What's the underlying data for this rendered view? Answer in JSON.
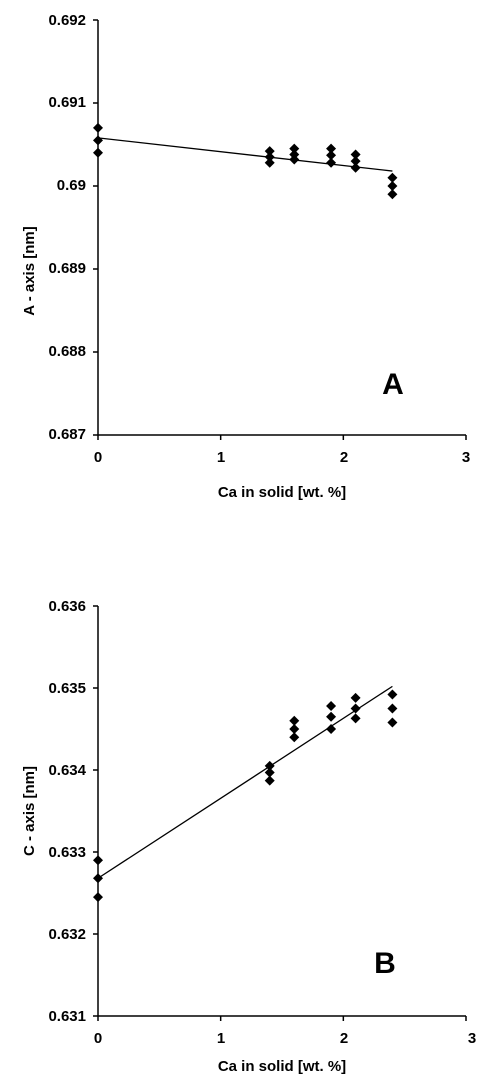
{
  "chart_data": [
    {
      "type": "scatter",
      "panel_label": "A",
      "xlabel": "Ca in solid [wt. %]",
      "ylabel": "A - axis [nm]",
      "xlim": [
        0,
        3
      ],
      "ylim": [
        0.687,
        0.692
      ],
      "x_ticks": [
        "0",
        "1",
        "2",
        "3"
      ],
      "y_ticks": [
        "0.687",
        "0.688",
        "0.689",
        "0.69",
        "0.691",
        "0.692"
      ],
      "grid": false,
      "legend": "none",
      "series": [
        {
          "points": [
            [
              0,
              0.6907
            ],
            [
              0,
              0.69055
            ],
            [
              0,
              0.6904
            ],
            [
              1.4,
              0.69042
            ],
            [
              1.4,
              0.69035
            ],
            [
              1.4,
              0.69028
            ],
            [
              1.6,
              0.69045
            ],
            [
              1.6,
              0.69038
            ],
            [
              1.6,
              0.69032
            ],
            [
              1.9,
              0.69045
            ],
            [
              1.9,
              0.69037
            ],
            [
              1.9,
              0.69028
            ],
            [
              2.1,
              0.69038
            ],
            [
              2.1,
              0.6903
            ],
            [
              2.1,
              0.69022
            ],
            [
              2.4,
              0.6901
            ],
            [
              2.4,
              0.69
            ],
            [
              2.4,
              0.6899
            ]
          ]
        }
      ],
      "trendline": [
        [
          0,
          0.69058
        ],
        [
          2.4,
          0.69018
        ]
      ]
    },
    {
      "type": "scatter",
      "panel_label": "B",
      "xlabel": "Ca in solid [wt. %]",
      "ylabel": "C - axis [nm]",
      "xlim": [
        0,
        3
      ],
      "ylim": [
        0.631,
        0.636
      ],
      "x_ticks": [
        "0",
        "1",
        "2",
        "3"
      ],
      "y_ticks": [
        "0.631",
        "0.632",
        "0.633",
        "0.634",
        "0.635",
        "0.636"
      ],
      "grid": false,
      "legend": "none",
      "series": [
        {
          "points": [
            [
              0,
              0.6329
            ],
            [
              0,
              0.63268
            ],
            [
              0,
              0.63245
            ],
            [
              1.4,
              0.63405
            ],
            [
              1.4,
              0.63397
            ],
            [
              1.4,
              0.63387
            ],
            [
              1.6,
              0.6346
            ],
            [
              1.6,
              0.6345
            ],
            [
              1.6,
              0.6344
            ],
            [
              1.9,
              0.63478
            ],
            [
              1.9,
              0.63465
            ],
            [
              1.9,
              0.6345
            ],
            [
              2.1,
              0.63488
            ],
            [
              2.1,
              0.63475
            ],
            [
              2.1,
              0.63463
            ],
            [
              2.4,
              0.63492
            ],
            [
              2.4,
              0.63475
            ],
            [
              2.4,
              0.63458
            ]
          ]
        }
      ],
      "trendline": [
        [
          0,
          0.63268
        ],
        [
          2.4,
          0.63502
        ]
      ]
    }
  ]
}
